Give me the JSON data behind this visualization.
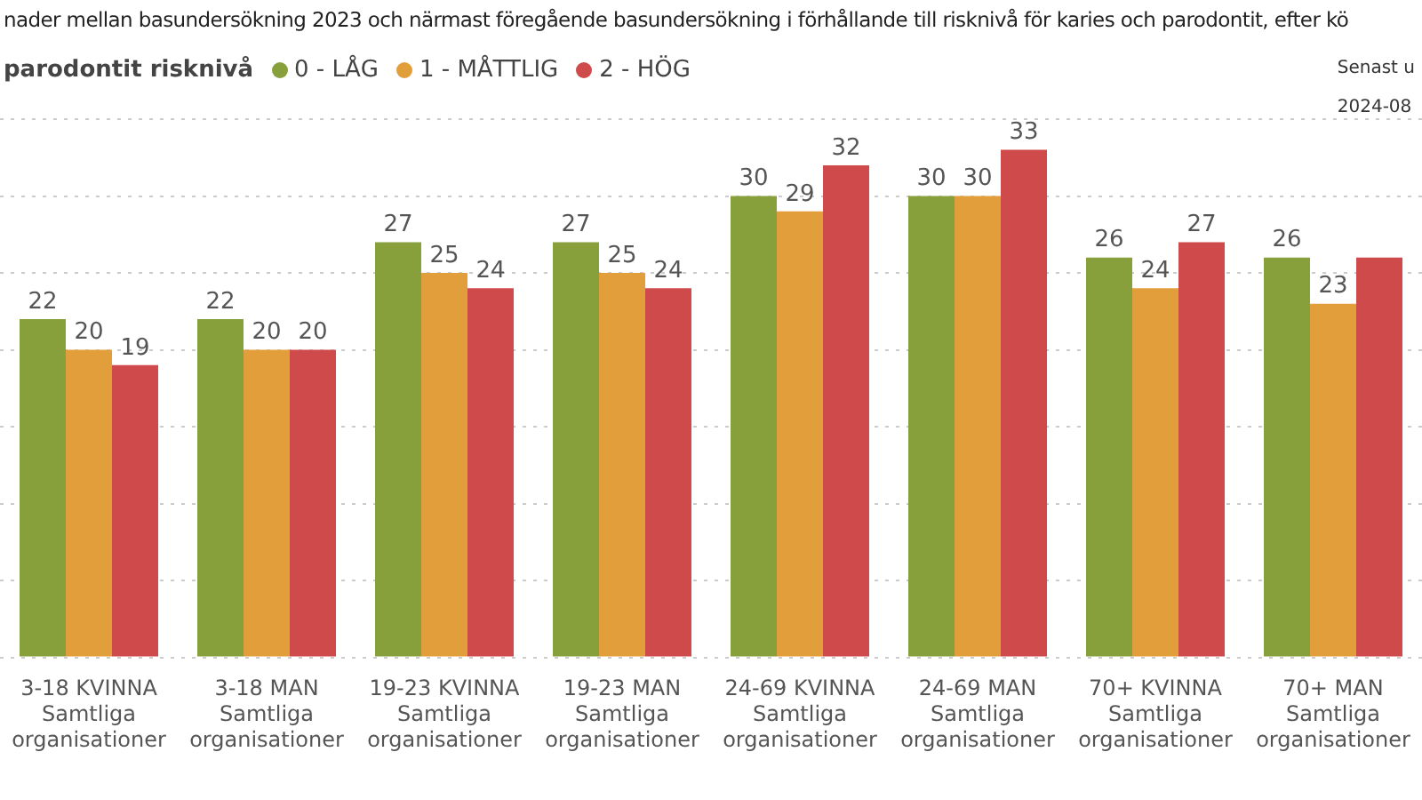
{
  "chart_data": {
    "type": "bar",
    "title": "nader mellan basundersökning 2023 och närmast föregående basundersökning i förhållande till risknivå för karies och parodontit, efter kö",
    "legend_title": "parodontit risknivå",
    "legend": "top left",
    "categories": [
      "3-18 KVINNA\nSamtliga\norganisationer",
      "3-18 MAN\nSamtliga\norganisationer",
      "19-23 KVINNA\nSamtliga\norganisationer",
      "19-23 MAN\nSamtliga\norganisationer",
      "24-69 KVINNA\nSamtliga\norganisationer",
      "24-69 MAN\nSamtliga\norganisationer",
      "70+ KVINNA\nSamtliga\norganisationer",
      "70+ MAN\nSamtliga\norganisationer"
    ],
    "series": [
      {
        "name": "0 - LÅG",
        "color": "#88a03c",
        "values": [
          22,
          22,
          27,
          27,
          30,
          30,
          26,
          26
        ],
        "value_labels": [
          "22",
          "22",
          "27",
          "27",
          "30",
          "30",
          "26",
          "26"
        ]
      },
      {
        "name": "1 - MÅTTLIG",
        "color": "#e29e3a",
        "values": [
          20,
          20,
          25,
          25,
          29,
          30,
          24,
          23
        ],
        "value_labels": [
          "20",
          "20",
          "25",
          "25",
          "29",
          "30",
          "24",
          "23"
        ]
      },
      {
        "name": "2 - HÖG",
        "color": "#cf4a4b",
        "values": [
          19,
          20,
          24,
          24,
          32,
          33,
          27,
          26
        ],
        "value_labels": [
          "19",
          "20",
          "24",
          "24",
          "32",
          "33",
          "27",
          null
        ]
      }
    ],
    "ylim": [
      0,
      35
    ],
    "yticks": [
      {
        "value": 0,
        "label": null
      },
      {
        "value": 5,
        "label": null
      },
      {
        "value": 10,
        "label": null
      },
      {
        "value": 15,
        "label": null
      },
      {
        "value": 20,
        "label": null
      },
      {
        "value": 25,
        "label": null
      },
      {
        "value": 30,
        "label": null
      },
      {
        "value": 35,
        "label": null
      }
    ],
    "grid": "y",
    "tick_labels": "x",
    "annotations": [
      "Senast u",
      "2024-08"
    ]
  }
}
